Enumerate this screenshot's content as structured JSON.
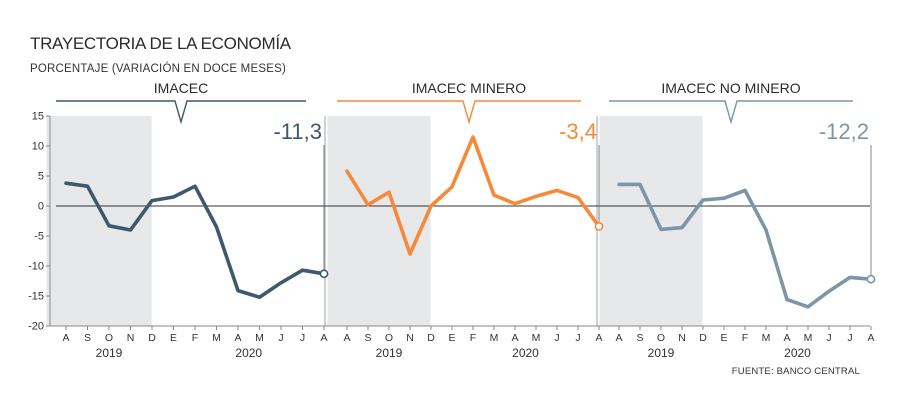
{
  "title": "TRAYECTORIA DE LA ECONOMÍA",
  "subtitle": "PORCENTAJE (VARIACIÓN EN DOCE MESES)",
  "source": "FUENTE: BANCO CENTRAL",
  "chart_data": [
    {
      "type": "line",
      "title": "IMACEC",
      "color": "#3d5a6c",
      "categories": [
        "A",
        "S",
        "O",
        "N",
        "D",
        "E",
        "F",
        "M",
        "A",
        "M",
        "J",
        "J",
        "A"
      ],
      "year_labels": [
        "2019",
        "2020"
      ],
      "values": [
        3.8,
        3.3,
        -3.3,
        -4.0,
        0.9,
        1.5,
        3.3,
        -3.5,
        -14.1,
        -15.2,
        -12.8,
        -10.7,
        -11.3
      ],
      "last_value_label": "-11,3",
      "ylim": [
        -20,
        15
      ],
      "yticks": [
        "15",
        "10",
        "5",
        "0",
        "-5",
        "-10",
        "-15",
        "-20"
      ],
      "shaded_range": [
        "A",
        "D"
      ]
    },
    {
      "type": "line",
      "title": "IMACEC MINERO",
      "color": "#f7893b",
      "categories": [
        "A",
        "S",
        "O",
        "N",
        "D",
        "E",
        "F",
        "M",
        "A",
        "M",
        "J",
        "J",
        "A"
      ],
      "year_labels": [
        "2019",
        "2020"
      ],
      "values": [
        5.8,
        0.2,
        2.3,
        -8.0,
        0.0,
        3.2,
        11.5,
        1.8,
        0.4,
        1.6,
        2.6,
        1.4,
        -3.4
      ],
      "last_value_label": "-3,4",
      "ylim": [
        -20,
        15
      ],
      "shaded_range": [
        "A",
        "D"
      ]
    },
    {
      "type": "line",
      "title": "IMACEC NO MINERO",
      "color": "#7c95a7",
      "categories": [
        "A",
        "S",
        "O",
        "N",
        "D",
        "E",
        "F",
        "M",
        "A",
        "M",
        "J",
        "J",
        "A"
      ],
      "year_labels": [
        "2019",
        "2020"
      ],
      "values": [
        3.6,
        3.6,
        -3.9,
        -3.6,
        1.0,
        1.3,
        2.6,
        -4.0,
        -15.6,
        -16.8,
        -14.2,
        -11.9,
        -12.2
      ],
      "last_value_label": "-12,2",
      "ylim": [
        -20,
        15
      ],
      "shaded_range": [
        "A",
        "D"
      ]
    }
  ]
}
